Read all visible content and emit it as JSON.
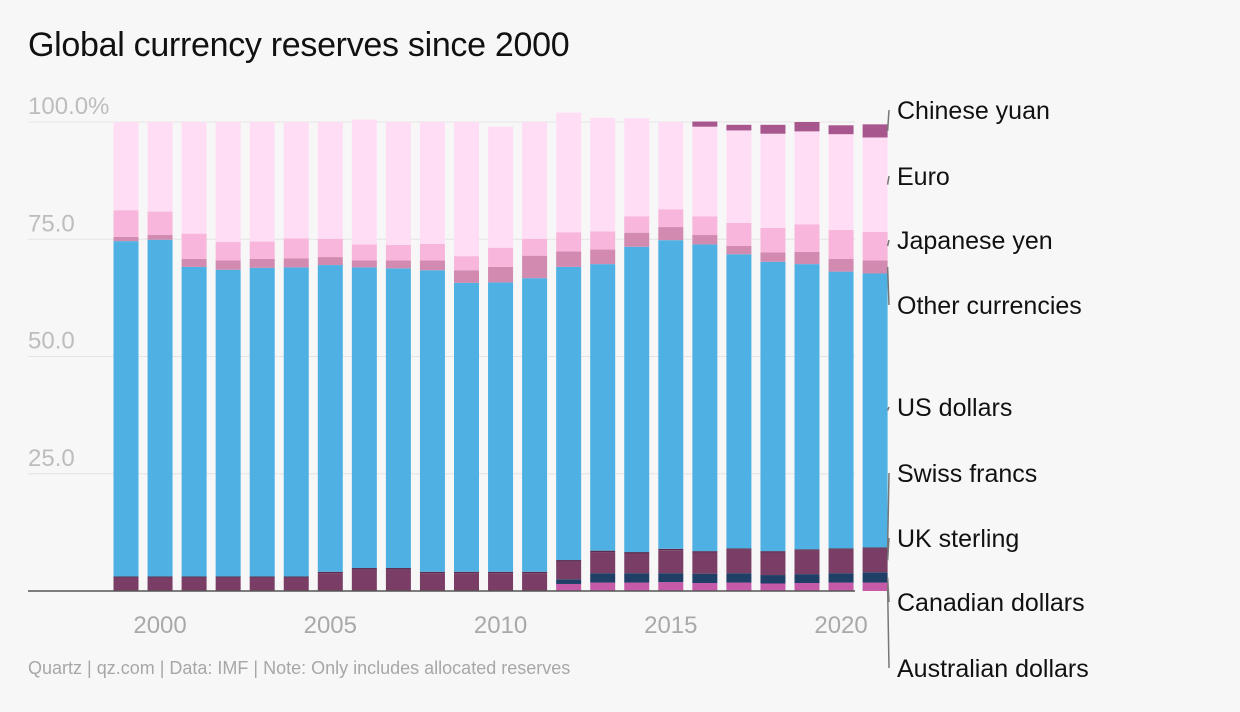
{
  "title": "Global currency reserves since 2000",
  "footer": "Quartz | qz.com | Data: IMF | Note: Only includes allocated reserves",
  "chart_data": {
    "type": "bar",
    "stacked": true,
    "title": "Global currency reserves since 2000",
    "ylim": [
      0,
      100
    ],
    "y_ticks": [
      {
        "value": 100,
        "label": "100.0%"
      },
      {
        "value": 75,
        "label": "75.0"
      },
      {
        "value": 50,
        "label": "50.0"
      },
      {
        "value": 25,
        "label": "25.0"
      }
    ],
    "x_ticks": [
      "2000",
      "2005",
      "2010",
      "2015",
      "2020"
    ],
    "categories": [
      "1999",
      "2000",
      "2001",
      "2002",
      "2003",
      "2004",
      "2005",
      "2006",
      "2007",
      "2008",
      "2009",
      "2010",
      "2011",
      "2012",
      "2013",
      "2014",
      "2015",
      "2016",
      "2017",
      "2018",
      "2019",
      "2020",
      "2021"
    ],
    "series": [
      {
        "name": "Australian dollars",
        "color": "#c45aa8",
        "values": [
          0,
          0,
          0,
          0,
          0,
          0,
          0,
          0,
          0,
          0,
          0,
          0,
          0,
          1.5,
          1.8,
          1.8,
          1.9,
          1.7,
          1.8,
          1.6,
          1.7,
          1.8,
          1.8
        ]
      },
      {
        "name": "Canadian dollars",
        "color": "#1f3f66",
        "values": [
          0,
          0,
          0,
          0,
          0,
          0,
          0,
          0,
          0,
          0,
          0,
          0,
          0,
          1.0,
          2.0,
          2.0,
          1.9,
          2.0,
          2.0,
          1.8,
          1.9,
          2.0,
          2.2
        ]
      },
      {
        "name": "UK sterling",
        "color": "#7a3e66",
        "values": [
          2.8,
          2.8,
          2.8,
          2.8,
          2.8,
          2.8,
          3.8,
          4.6,
          4.6,
          3.8,
          3.8,
          3.8,
          3.8,
          3.8,
          4.5,
          4.2,
          4.9,
          4.5,
          5.0,
          4.8,
          5.0,
          5.0,
          5.0
        ]
      },
      {
        "name": "Swiss francs",
        "color": "#5a2b4c",
        "values": [
          0.3,
          0.3,
          0.3,
          0.3,
          0.3,
          0.3,
          0.3,
          0.3,
          0.3,
          0.3,
          0.3,
          0.3,
          0.3,
          0.3,
          0.3,
          0.3,
          0.3,
          0.3,
          0.3,
          0.3,
          0.3,
          0.3,
          0.3
        ]
      },
      {
        "name": "US dollars",
        "color": "#4fb1e3",
        "values": [
          71.5,
          71.8,
          66.0,
          65.4,
          65.8,
          65.9,
          65.4,
          64.1,
          63.9,
          64.3,
          61.6,
          61.7,
          62.6,
          62.5,
          61.1,
          65.1,
          65.8,
          65.4,
          62.7,
          61.7,
          60.8,
          59.0,
          58.4
        ]
      },
      {
        "name": "Other currencies",
        "color": "#d28ab0",
        "values": [
          0.9,
          1.0,
          1.7,
          2.0,
          1.9,
          1.9,
          1.7,
          1.5,
          1.7,
          2.1,
          2.7,
          3.3,
          4.8,
          3.3,
          3.1,
          3.0,
          2.8,
          2.0,
          1.8,
          2.0,
          2.6,
          2.7,
          2.8
        ]
      },
      {
        "name": "Japanese yen",
        "color": "#f9b6dc",
        "values": [
          5.7,
          5.0,
          5.4,
          3.9,
          3.7,
          4.3,
          3.9,
          3.4,
          3.3,
          3.5,
          3.0,
          4.1,
          3.6,
          4.1,
          3.9,
          3.5,
          3.8,
          4.0,
          4.9,
          5.2,
          5.9,
          6.2,
          6.1
        ]
      },
      {
        "name": "Euro",
        "color": "#ffdef5",
        "values": [
          18.8,
          19.1,
          23.8,
          25.6,
          25.5,
          24.8,
          24.9,
          26.6,
          26.2,
          26.0,
          28.6,
          25.8,
          24.9,
          25.5,
          24.2,
          20.9,
          18.6,
          19.1,
          19.7,
          20.1,
          19.8,
          20.4,
          20.1
        ]
      },
      {
        "name": "Chinese yuan",
        "color": "#a7578e",
        "values": [
          0,
          0,
          0,
          0,
          0,
          0,
          0,
          0,
          0,
          0,
          0,
          0,
          0,
          0,
          0,
          0,
          0,
          1.1,
          1.2,
          1.9,
          2.0,
          1.9,
          2.8
        ]
      }
    ]
  }
}
